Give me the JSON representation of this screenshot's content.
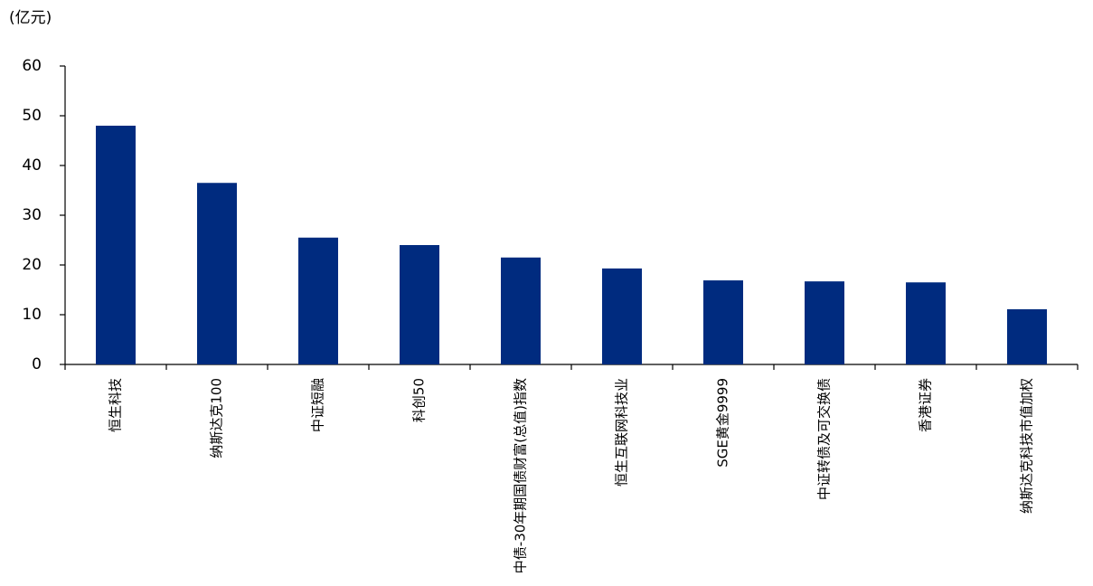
{
  "chart_data": {
    "type": "bar",
    "y_unit_label": "(亿元)",
    "categories": [
      "恒生科技",
      "纳斯达克100",
      "中证短融",
      "科创50",
      "中债-30年期国债财富(总值)指数",
      "恒生互联网科技业",
      "SGE黄金9999",
      "中证转债及可交换债",
      "香港证券",
      "纳斯达克科技市值加权"
    ],
    "values": [
      48,
      36.5,
      25.5,
      24,
      21.5,
      19.3,
      16.9,
      16.7,
      16.5,
      11.1
    ],
    "color": "#002b7f",
    "ylim": [
      0,
      60
    ],
    "yticks": [
      0,
      10,
      20,
      30,
      40,
      50,
      60
    ],
    "grid": false
  }
}
